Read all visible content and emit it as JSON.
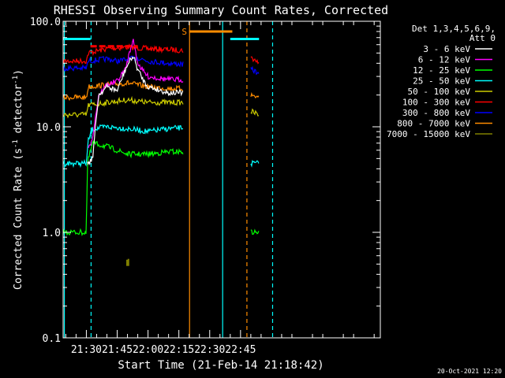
{
  "chart_data": {
    "type": "line",
    "title": "RHESSI Observing Summary Count Rates, Corrected",
    "xlabel": "Start Time (21-Feb-14 21:18:42)",
    "ylabel": "Corrected Count Rate (s⁻¹ detector⁻¹)",
    "ylabel_parts": {
      "pre": "Corrected Count Rate (s",
      "sup1": "-1",
      "mid": " detector",
      "sup2": "-1",
      "post": ")"
    },
    "y_scale": "log",
    "ylim": [
      0.1,
      100
    ],
    "y_ticks": [
      {
        "v": 0.1,
        "label": "0.1"
      },
      {
        "v": 1,
        "label": "1.0"
      },
      {
        "v": 10,
        "label": "10.0"
      },
      {
        "v": 100,
        "label": "100.0"
      }
    ],
    "xlim": [
      1278.7,
      1433
    ],
    "x_unit": "minutes since 00:00 UT",
    "x_ticks": [
      {
        "v": 1290,
        "label": "21:30"
      },
      {
        "v": 1305,
        "label": "21:45"
      },
      {
        "v": 1320,
        "label": "22:00"
      },
      {
        "v": 1335,
        "label": "22:15"
      },
      {
        "v": 1350,
        "label": "22:30"
      },
      {
        "v": 1365,
        "label": "22:45"
      }
    ],
    "legend": {
      "placement": "right",
      "header": [
        "Det 1,3,4,5,6,9,",
        "Att 0"
      ],
      "entries": [
        {
          "label": "3 - 6 keV",
          "color": "#ffffff"
        },
        {
          "label": "6 - 12 keV",
          "color": "#ff00ff"
        },
        {
          "label": "12 - 25 keV",
          "color": "#00ff00"
        },
        {
          "label": "25 - 50 keV",
          "color": "#00ffff"
        },
        {
          "label": "50 - 100 keV",
          "color": "#cccc00"
        },
        {
          "label": "100 - 300 keV",
          "color": "#ff0000"
        },
        {
          "label": "300 - 800 keV",
          "color": "#0000ff"
        },
        {
          "label": "800 - 7000 keV",
          "color": "#ff8c00"
        },
        {
          "label": "7000 - 15000 keV",
          "color": "#808000"
        }
      ]
    },
    "series": [
      {
        "color": "#ff0000",
        "segments": [
          [
            [
              1278.7,
              42
            ],
            [
              1290,
              42
            ],
            [
              1291,
              50
            ],
            [
              1300,
              55
            ],
            [
              1310,
              57
            ],
            [
              1320,
              55
            ],
            [
              1330,
              54
            ],
            [
              1337.3,
              53
            ]
          ],
          [
            [
              1370,
              45
            ],
            [
              1373,
              42
            ],
            [
              1374,
              40
            ]
          ]
        ]
      },
      {
        "color": "#0000ff",
        "segments": [
          [
            [
              1278.7,
              36
            ],
            [
              1290,
              36
            ],
            [
              1291,
              42
            ],
            [
              1300,
              44
            ],
            [
              1305,
              42
            ],
            [
              1312,
              44
            ],
            [
              1315,
              45
            ],
            [
              1320,
              42
            ],
            [
              1330,
              40
            ],
            [
              1337.3,
              39
            ]
          ],
          [
            [
              1370,
              35
            ],
            [
              1373,
              33
            ],
            [
              1374,
              30
            ]
          ]
        ]
      },
      {
        "color": "#ff8c00",
        "segments": [
          [
            [
              1278.7,
              19
            ],
            [
              1290,
              19
            ],
            [
              1291,
              24
            ],
            [
              1300,
              25
            ],
            [
              1310,
              26
            ],
            [
              1320,
              24
            ],
            [
              1330,
              23
            ],
            [
              1337.3,
              23
            ]
          ],
          [
            [
              1370,
              20
            ],
            [
              1374,
              19
            ]
          ]
        ]
      },
      {
        "color": "#cccc00",
        "segments": [
          [
            [
              1278.7,
              13
            ],
            [
              1290,
              13
            ],
            [
              1291,
              16
            ],
            [
              1300,
              17
            ],
            [
              1310,
              18
            ],
            [
              1320,
              17
            ],
            [
              1330,
              17
            ],
            [
              1337.3,
              17
            ]
          ],
          [
            [
              1370,
              14
            ],
            [
              1374,
              13
            ]
          ]
        ]
      },
      {
        "color": "#00ffff",
        "segments": [
          [
            [
              1278.7,
              4.5
            ],
            [
              1290,
              4.5
            ],
            [
              1291,
              7.5
            ],
            [
              1293,
              9.5
            ],
            [
              1300,
              10
            ],
            [
              1310,
              9.6
            ],
            [
              1320,
              9
            ],
            [
              1330,
              9.6
            ],
            [
              1337.3,
              9.8
            ]
          ],
          [
            [
              1370,
              4.5
            ],
            [
              1374,
              4.5
            ]
          ]
        ]
      },
      {
        "color": "#00ff00",
        "segments": [
          [
            [
              1278.7,
              1
            ],
            [
              1290,
              1
            ],
            [
              1290.5,
              4.5
            ],
            [
              1293,
              7
            ],
            [
              1300,
              6.5
            ],
            [
              1310,
              5.5
            ],
            [
              1320,
              5.5
            ],
            [
              1330,
              5.8
            ],
            [
              1337.3,
              5.8
            ]
          ],
          [
            [
              1370,
              1
            ],
            [
              1374,
              1
            ]
          ]
        ]
      },
      {
        "color": "#ff00ff",
        "segments": [
          [
            [
              1291,
              6
            ],
            [
              1293,
              8
            ],
            [
              1296,
              20
            ],
            [
              1300,
              25
            ],
            [
              1305,
              27
            ],
            [
              1309,
              35
            ],
            [
              1312,
              60
            ],
            [
              1313,
              65
            ],
            [
              1315,
              40
            ],
            [
              1318,
              33
            ],
            [
              1320,
              30
            ],
            [
              1325,
              29
            ],
            [
              1330,
              28
            ],
            [
              1337.3,
              28
            ]
          ]
        ]
      },
      {
        "color": "#ffffff",
        "segments": [
          [
            [
              1290.5,
              4.5
            ],
            [
              1293,
              5
            ],
            [
              1296,
              20
            ],
            [
              1300,
              24
            ],
            [
              1305,
              22
            ],
            [
              1309,
              35
            ],
            [
              1312,
              45
            ],
            [
              1313,
              46
            ],
            [
              1315,
              35
            ],
            [
              1318,
              27
            ],
            [
              1320,
              24
            ],
            [
              1330,
              21
            ],
            [
              1337.3,
              21
            ]
          ]
        ]
      },
      {
        "color": "#808000",
        "segments": [
          [
            [
              1309.8,
              0.48
            ],
            [
              1309.8,
              0.55
            ]
          ],
          [
            [
              1310.5,
              0.48
            ],
            [
              1310.5,
              0.56
            ]
          ]
        ]
      }
    ],
    "flag_lines": [
      {
        "color": "#00ffff",
        "y": 68,
        "x": [
          [
            1278.7,
            1292
          ],
          [
            1360,
            1374
          ]
        ]
      },
      {
        "color": "#ff8c00",
        "y": 80,
        "x": [
          [
            1340,
            1361
          ]
        ]
      },
      {
        "color": "#ff0000",
        "y": 58,
        "x": [
          [
            1292,
            1315
          ]
        ]
      }
    ],
    "flag_label": {
      "text": "S",
      "x": 1337.7,
      "y": 80,
      "color": "#ff8c00"
    },
    "event_markers": [
      {
        "x": 1279.3,
        "color": "#00ffff",
        "style": "solid"
      },
      {
        "x": 1292.3,
        "color": "#00ffff",
        "style": "dashed"
      },
      {
        "x": 1340.2,
        "color": "#ff8c00",
        "style": "solid"
      },
      {
        "x": 1356.3,
        "color": "#00ffff",
        "style": "solid"
      },
      {
        "x": 1368.1,
        "color": "#ff8c00",
        "style": "dashed"
      },
      {
        "x": 1380.6,
        "color": "#00ffff",
        "style": "dashed"
      }
    ],
    "timestamp": "20-Oct-2021 12:20"
  }
}
